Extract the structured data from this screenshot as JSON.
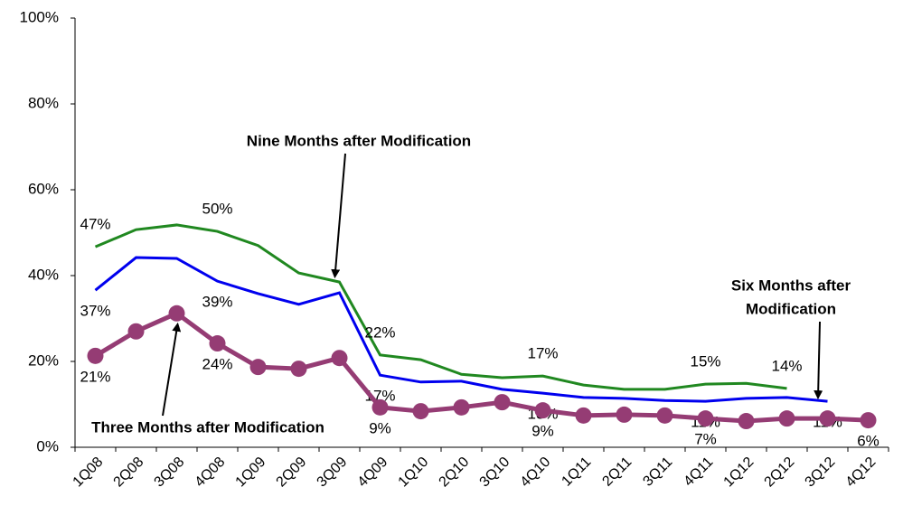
{
  "chart_data": {
    "type": "line",
    "categories": [
      "1Q08",
      "2Q08",
      "3Q08",
      "4Q08",
      "1Q09",
      "2Q09",
      "3Q09",
      "4Q09",
      "1Q10",
      "2Q10",
      "3Q10",
      "4Q10",
      "1Q11",
      "2Q11",
      "3Q11",
      "4Q11",
      "1Q12",
      "2Q12",
      "3Q12",
      "4Q12"
    ],
    "ylim": [
      0,
      100
    ],
    "yticks": [
      {
        "value": 0,
        "label": "0%"
      },
      {
        "value": 20,
        "label": "20%"
      },
      {
        "value": 40,
        "label": "40%"
      },
      {
        "value": 60,
        "label": "60%"
      },
      {
        "value": 80,
        "label": "80%"
      },
      {
        "value": 100,
        "label": "100%"
      }
    ],
    "grid": false,
    "series": [
      {
        "name": "Nine Months after Modification",
        "color": "#208820",
        "markers": false,
        "values": [
          46.7,
          50.7,
          51.8,
          50.3,
          47,
          40.6,
          38.5,
          21.5,
          20.4,
          17,
          16.2,
          16.6,
          14.5,
          13.5,
          13.5,
          14.7,
          14.9,
          13.7,
          null,
          null
        ],
        "value_labels": [
          "47%",
          null,
          null,
          "50%",
          null,
          null,
          null,
          "22%",
          null,
          null,
          null,
          "17%",
          null,
          null,
          null,
          "15%",
          null,
          "14%",
          null,
          null
        ]
      },
      {
        "name": "Six Months after Modification",
        "color": "#0000ee",
        "markers": false,
        "values": [
          36.6,
          44.2,
          44,
          38.7,
          35.8,
          33.3,
          36,
          16.8,
          15.2,
          15.4,
          13.5,
          12.6,
          11.6,
          11.4,
          10.9,
          10.7,
          11.4,
          11.6,
          10.7,
          null
        ],
        "value_labels": [
          "37%",
          null,
          null,
          "39%",
          null,
          null,
          null,
          "17%",
          null,
          null,
          null,
          "13%",
          null,
          null,
          null,
          "11%",
          null,
          null,
          "11%",
          null
        ]
      },
      {
        "name": "Three Months after Modification",
        "color": "#953c74",
        "markers": true,
        "values": [
          21.3,
          27,
          31.2,
          24.2,
          18.7,
          18.3,
          20.8,
          9.3,
          8.4,
          9.3,
          10.5,
          8.6,
          7.4,
          7.6,
          7.4,
          6.7,
          6.1,
          6.7,
          6.7,
          6.3
        ],
        "value_labels": [
          "21%",
          null,
          null,
          "24%",
          null,
          null,
          null,
          "9%",
          null,
          null,
          null,
          "9%",
          null,
          null,
          null,
          "7%",
          null,
          null,
          null,
          "6%"
        ]
      }
    ],
    "annotations": {
      "nine": "Nine Months after Modification",
      "six": [
        "Six Months after",
        "Modification"
      ],
      "three": "Three Months after Modification"
    }
  }
}
